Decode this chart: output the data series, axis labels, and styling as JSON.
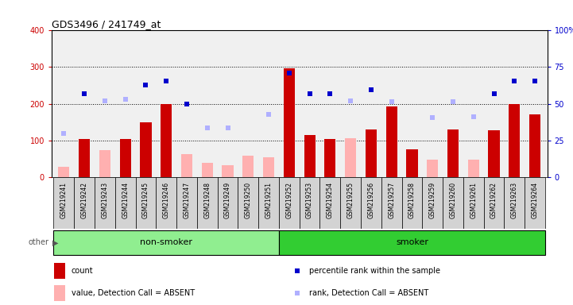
{
  "title": "GDS3496 / 241749_at",
  "samples": [
    "GSM219241",
    "GSM219242",
    "GSM219243",
    "GSM219244",
    "GSM219245",
    "GSM219246",
    "GSM219247",
    "GSM219248",
    "GSM219249",
    "GSM219250",
    "GSM219251",
    "GSM219252",
    "GSM219253",
    "GSM219254",
    "GSM219255",
    "GSM219256",
    "GSM219257",
    "GSM219258",
    "GSM219259",
    "GSM219260",
    "GSM219261",
    "GSM219262",
    "GSM219263",
    "GSM219264"
  ],
  "count_values": [
    null,
    103,
    null,
    103,
    150,
    200,
    null,
    null,
    null,
    null,
    null,
    296,
    115,
    103,
    null,
    130,
    192,
    75,
    null,
    130,
    null,
    128,
    200,
    170
  ],
  "absent_values": [
    28,
    null,
    73,
    null,
    null,
    null,
    62,
    38,
    32,
    57,
    53,
    null,
    null,
    null,
    105,
    null,
    null,
    null,
    47,
    null,
    47,
    null,
    null,
    null
  ],
  "rank_present": [
    null,
    57,
    null,
    null,
    63,
    65.75,
    49.75,
    null,
    null,
    null,
    null,
    71,
    57,
    57,
    null,
    59.5,
    null,
    null,
    null,
    null,
    null,
    57,
    65.75,
    65.75
  ],
  "rank_absent": [
    29.5,
    null,
    52,
    53.25,
    null,
    null,
    null,
    33.25,
    33.25,
    null,
    42.5,
    null,
    null,
    null,
    52,
    null,
    51.25,
    null,
    40.75,
    51.25,
    41.25,
    null,
    null,
    null
  ],
  "non_smoker_count": 11,
  "smoker_count": 13,
  "ylim_left": [
    0,
    400
  ],
  "ylim_right": [
    0,
    100
  ],
  "yticks_left": [
    0,
    100,
    200,
    300,
    400
  ],
  "yticks_right": [
    0,
    25,
    50,
    75,
    100
  ],
  "color_count": "#cc0000",
  "color_absent_val": "#ffb0b0",
  "color_rank_present": "#0000cc",
  "color_rank_absent": "#b0b0ff",
  "bg_plot": "#f0f0f0",
  "bg_label": "#d3d3d3",
  "bg_nonsmoker": "#90ee90",
  "bg_smoker": "#32cd32",
  "grid_lines": [
    100,
    200,
    300
  ],
  "bar_width": 0.55
}
